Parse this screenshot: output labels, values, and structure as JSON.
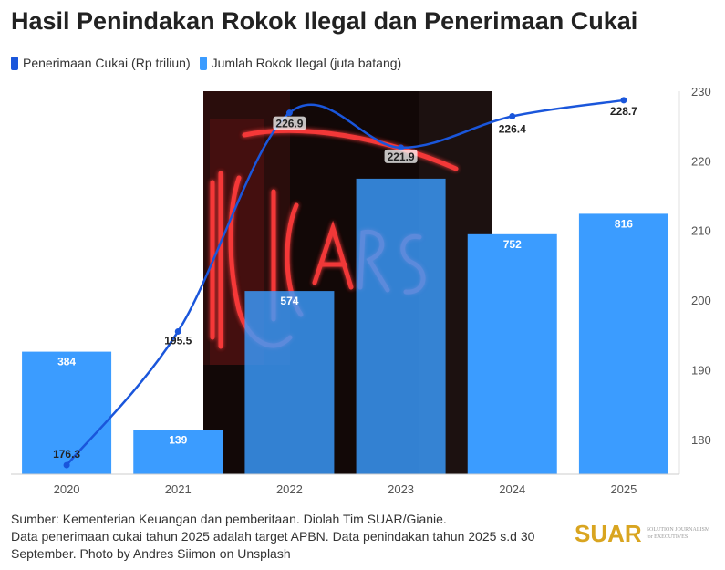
{
  "title": "Hasil Penindakan Rokok Ilegal dan Penerimaan Cukai",
  "legend": [
    {
      "label": "Penerimaan Cukai (Rp triliun)",
      "color": "#1a56db"
    },
    {
      "label": "Jumlah Rokok Ilegal (juta batang)",
      "color": "#3b9cff"
    }
  ],
  "footer": {
    "line1": "Sumber: Kementerian Keuangan dan pemberitaan. Diolah Tim SUAR/Gianie.",
    "line2": "Data penerimaan cukai tahun 2025 adalah target APBN. Data penindakan tahun 2025 s.d 30",
    "line3": "September. Photo by Andres Siimon on Unsplash"
  },
  "logo": {
    "word": "SUAR",
    "tagline1": "SOLUTION JOURNALISM",
    "tagline2": "for EXECUTIVES"
  },
  "chart_data": {
    "type": "bar",
    "categories": [
      "2020",
      "2021",
      "2022",
      "2023",
      "2024",
      "2025"
    ],
    "series": [
      {
        "name": "Jumlah Rokok Ilegal (juta batang)",
        "type": "bar",
        "color": "#3b9cff",
        "values": [
          384,
          139,
          574,
          926,
          752,
          816
        ],
        "labels": [
          "384",
          "139",
          "574",
          "",
          "752",
          "816"
        ]
      },
      {
        "name": "Penerimaan Cukai (Rp triliun)",
        "type": "line",
        "color": "#1a56db",
        "axis": "right",
        "values": [
          176.3,
          195.5,
          226.9,
          221.9,
          226.4,
          228.7
        ],
        "labels": [
          "176.3",
          "195.5",
          "226.9",
          "221.9",
          "226.4",
          "228.7"
        ]
      }
    ],
    "left_axis": {
      "range": [
        0,
        1200
      ],
      "ticks_visible": false
    },
    "right_axis": {
      "range": [
        175,
        230
      ],
      "ticks": [
        180,
        190,
        200,
        210,
        220,
        230
      ]
    },
    "background_photo": "neon-cigars-sign",
    "grid": false,
    "legend_position": "top-left"
  }
}
